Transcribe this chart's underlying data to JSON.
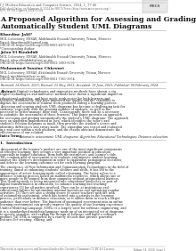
{
  "journal_line1": "I.J. Modern Education and Computer Science, 2024, 1, 37-46",
  "journal_line2": "Published Online on February 8, 2024 by MECS Press (http://www.mecs-press.org/)",
  "journal_line3": "DOI: 10.5815/ijmecs.2024.01.04",
  "author1_name": "Khardine Jalil*",
  "author1_aff": "MGL Laboratory, ENSAB, Abdelmalek Essaadi University, Tétuan, Morocco",
  "author1_email": "Email: khardinejalil@gmail.com",
  "author1_orcid": "ORCID iD: https://orcid.org/0000-0003-4475-2651",
  "author1_note": "*Corresponding Author",
  "author2_name": "Jalou El Bouhdidi",
  "author2_aff": "MGL Laboratory, ENSAB, Abdelmalek Essaadi University, Tétuan, Morocco",
  "author2_email": "Email: jalou.elbouhdidi@uae.ac.ma",
  "author2_orcid": "ORCID iD: https://orcid.org/0000-0002-3003-9194",
  "author3_name": "Mohammed Yassine Chkrouri",
  "author3_aff": "MGL Laboratory, ENSAS, Abdelmalek Essaadi University, Tétuan, Morocco",
  "author3_email": "Email: mychkrouri@uae.ac.ma",
  "author3_orcid": "ORCID iD: https://orcid.org/0000-0001-7361-3954",
  "received": "Received: 14 March, 2023; Revised: 23 May, 2023; Accepted: 19 June, 2023; Published: 08 February, 2024",
  "abstract_label": "Abstract:",
  "abstract_text": "Digital technologies and innovative methods have shown a significant impact on educational activities, and have made work easier for both learners and teachers. Additionally, they have improved the quality and the capability to digitize the assessment of student work produced during a learning process. Assessing and scoring students UML diagrams has become a challenging task for students, especially with the growing number of students, as well as the necessity to better manage their time. Consequently, there will be a necessity to automate the assessment of these learners. This paper presents an approach for assessing and grading automatically the student's UML diagrams. The approach uses an algorithm implemented in Java, which identifies the tutor's and student's relation diagrams as input, then provides the student's scores and identifies differences and errors made. The algorithm was tested and evaluated in a real case within a web platform, and the results obtained demonstrate the effectiveness of our solution.",
  "index_label": "Index Terms:",
  "index_text": "Automatic assessment; UML diagrams; Algorithm; Educational Technologies; Distance education.",
  "section_label": "1.  Introduction",
  "intro_para1": "Assessment of the learner's product are one of the most significant components of effective learning, they occupy a very important position in education, especially in higher education, from both the instructor's and learner's side. The common goal of assessment is to evaluate and improve student learning, analyze the learner's development in order to implement pedagogical decisions, and achieve the learning outcomes set for each learning program.",
  "intro_para2": "The emergence of New Information and Communication Technologies in the field of training, aimed at enhancing students' abilities and skills, it has led to the appearance of active learning mode called e-learning. The latter refers to a distance learning process based on multimedia resources, which allows one or more people to be trained from their computer without geographical barriers. This learning mode is being integrated into educational processes as part of digital transformation in education, to enhance learning and teaching experiences [2] for all parties involved. They can be at institutions and educational entities by automating internal operations and optimizing regular activities. [3] They are also a strong desire to assist teachers with the task of automating assessment, which has turned into a priority in the learning process, particularly in distance education, as it allows them to reach a larger audience than ever before. The function of automated assessment into an online learning environment can greatly improve the quality of our learning experience.",
  "intro_para3": "Unified Modeling Language (UML) is a largely used for software engineering, and it is a standardized modeling language made up of an integrated set of diagrams to specify, visualize, and explain the design of software and build a software product. [4] UML is supported by a variety of tools that provide powerful features for creating, editing, and",
  "footer_left": "This work is open access and licensed under the Creative Commons CC BY 4.0 License.",
  "footer_right": "Volume 14, 2024, Issue 1",
  "bg_color": "#ffffff"
}
